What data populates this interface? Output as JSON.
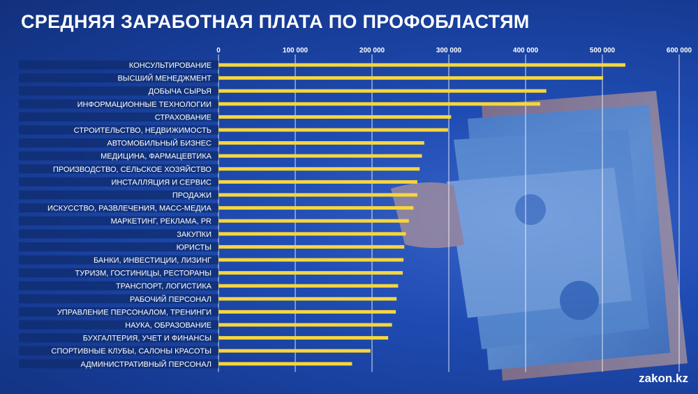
{
  "title": "СРЕДНЯЯ ЗАРАБОТНАЯ ПЛАТА ПО ПРОФОБЛАСТЯМ",
  "brand": "zakon.kz",
  "colors": {
    "bar": "#f6d63c",
    "label_band": "#0f2c6e",
    "text": "#ffffff",
    "grid": "#ffffff"
  },
  "chart_data": {
    "type": "bar",
    "orientation": "horizontal",
    "title": "СРЕДНЯЯ ЗАРАБОТНАЯ ПЛАТА ПО ПРОФОБЛАСТЯМ",
    "xlim": [
      0,
      600000
    ],
    "x_ticks": [
      0,
      100000,
      200000,
      300000,
      400000,
      500000,
      600000
    ],
    "x_tick_labels": [
      "0",
      "100 000",
      "200 000",
      "300 000",
      "400 000",
      "500 000",
      "600 000"
    ],
    "x_axis_position": "top",
    "grid": true,
    "categories": [
      "КОНСУЛЬТИРОВАНИЕ",
      "ВЫСШИЙ МЕНЕДЖМЕНТ",
      "ДОБЫЧА СЫРЬЯ",
      "ИНФОРМАЦИОННЫЕ ТЕХНОЛОГИИ",
      "СТРАХОВАНИЕ",
      "СТРОИТЕЛЬСТВО, НЕДВИЖИМОСТЬ",
      "АВТОМОБИЛЬНЫЙ БИЗНЕС",
      "МЕДИЦИНА, ФАРМАЦЕВТИКА",
      "ПРОИЗВОДСТВО, СЕЛЬСКОЕ ХОЗЯЙСТВО",
      "ИНСТАЛЛЯЦИЯ И СЕРВИС",
      "ПРОДАЖИ",
      "ИСКУССТВО, РАЗВЛЕЧЕНИЯ, МАСС-МЕДИА",
      "МАРКЕТИНГ, РЕКЛАМА, PR",
      "ЗАКУПКИ",
      "ЮРИСТЫ",
      "БАНКИ, ИНВЕСТИЦИИ, ЛИЗИНГ",
      "ТУРИЗМ, ГОСТИНИЦЫ, РЕСТОРАНЫ",
      "ТРАНСПОРТ, ЛОГИСТИКА",
      "РАБОЧИЙ ПЕРСОНАЛ",
      "УПРАВЛЕНИЕ ПЕРСОНАЛОМ, ТРЕНИНГИ",
      "НАУКА, ОБРАЗОВАНИЕ",
      "БУХГАЛТЕРИЯ, УЧЕТ И ФИНАНСЫ",
      "СПОРТИВНЫЕ КЛУБЫ, САЛОНЫ КРАСОТЫ",
      "АДМИНИСТРАТИВНЫЙ ПЕРСОНАЛ"
    ],
    "values": [
      530000,
      501000,
      427000,
      419000,
      303000,
      299000,
      268000,
      265000,
      262000,
      259000,
      259000,
      254000,
      248000,
      244000,
      242000,
      241000,
      240000,
      234000,
      232000,
      231000,
      226000,
      221000,
      198000,
      174000
    ]
  }
}
